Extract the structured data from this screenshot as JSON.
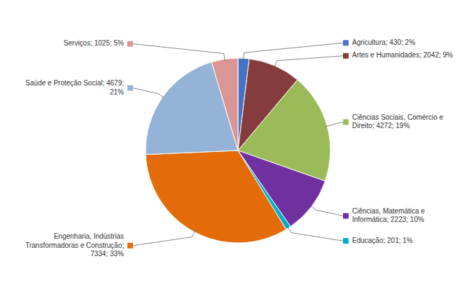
{
  "chart_data": {
    "type": "pie",
    "categories": [
      "Agricultura; 430; 2%",
      "Artes e Humanidades; 2042; 9%",
      "Ciências Sociais, Comércio e\nDireito; 4272; 19%",
      "Ciências, Matemática e\nInformática; 2223; 10%",
      "Educação; 201; 1%",
      "Engenharia, Indústrias\nTransformadoras e Construção;\n7334; 33%",
      "Saúde e Proteção Social; 4679;\n21%",
      "Serviços; 1025; 5%"
    ],
    "values": [
      430,
      2042,
      4272,
      2223,
      201,
      7334,
      4679,
      1025
    ],
    "colors": [
      "#4472C4",
      "#843C3C",
      "#9BBB59",
      "#7030A0",
      "#00B0C8",
      "#E36C09",
      "#95B3D7",
      "#D99694"
    ]
  }
}
